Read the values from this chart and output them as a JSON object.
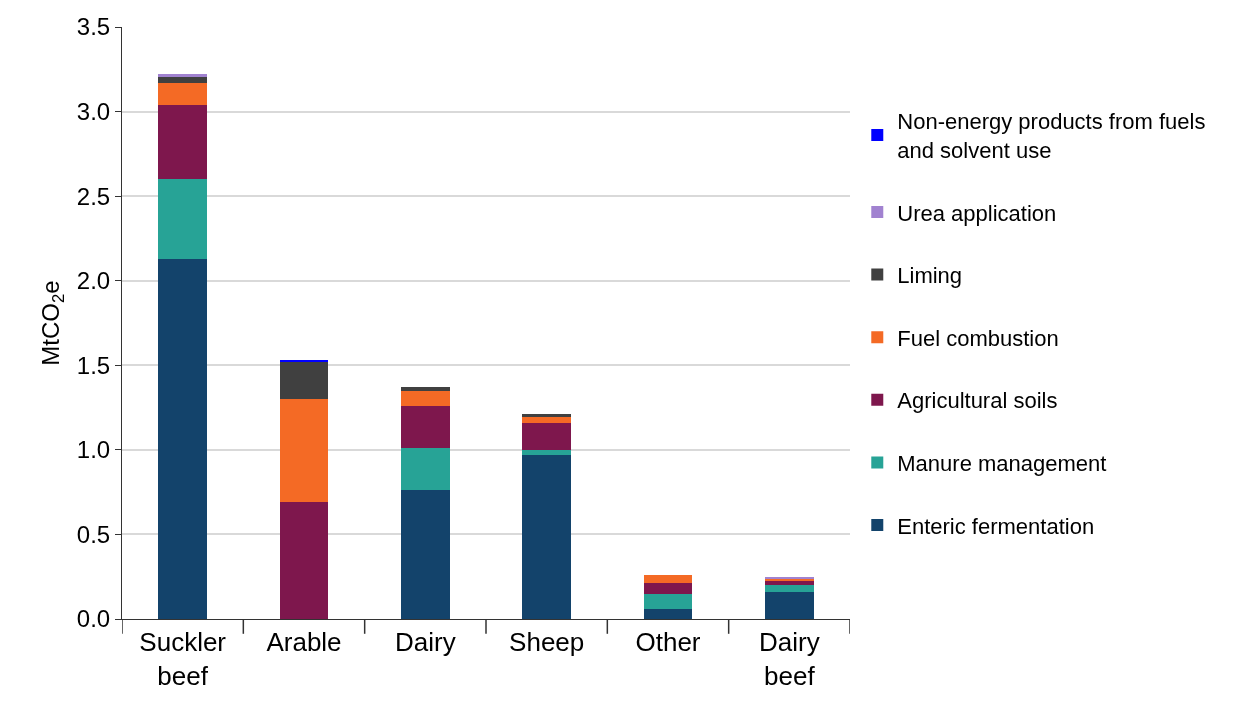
{
  "chart_data": {
    "type": "bar",
    "stacked": true,
    "ylabel": "MtCO$_{2}$e",
    "categories": [
      "Suckler beef",
      "Arable",
      "Dairy",
      "Sheep",
      "Other",
      "Dairy beef"
    ],
    "series": [
      {
        "name": "Enteric fermentation",
        "color": "#13436b",
        "values": [
          2.13,
          0,
          0.76,
          0.97,
          0.06,
          0.16
        ]
      },
      {
        "name": "Manure management",
        "color": "#27a396",
        "values": [
          0.47,
          0,
          0.25,
          0.03,
          0.09,
          0.04
        ]
      },
      {
        "name": "Agricultural soils",
        "color": "#7e174d",
        "values": [
          0.44,
          0.69,
          0.25,
          0.16,
          0.06,
          0.03
        ]
      },
      {
        "name": "Fuel combustion",
        "color": "#f46a25",
        "values": [
          0.13,
          0.61,
          0.09,
          0.04,
          0.05,
          0.01
        ]
      },
      {
        "name": "Liming",
        "color": "#404040",
        "values": [
          0.04,
          0.22,
          0.02,
          0.01,
          0,
          0
        ]
      },
      {
        "name": "Urea application",
        "color": "#a182d0",
        "values": [
          0.01,
          0,
          0,
          0,
          0,
          0.01
        ]
      },
      {
        "name": "Non-energy products from fuels and solvent use",
        "color": "#0000ff",
        "values": [
          0,
          0.01,
          0,
          0,
          0,
          0
        ]
      }
    ],
    "ylim": [
      0,
      3.5
    ],
    "yticks": [
      {
        "value": 0,
        "label": "0.0"
      },
      {
        "value": 0.5,
        "label": "0.5"
      },
      {
        "value": 1,
        "label": "1.0"
      },
      {
        "value": 1.5,
        "label": "1.5"
      },
      {
        "value": 2,
        "label": "2.0"
      },
      {
        "value": 2.5,
        "label": "2.5"
      },
      {
        "value": 3,
        "label": "3.0"
      },
      {
        "value": 3.5,
        "label": "3.5"
      }
    ],
    "grid": "y",
    "legend": "right"
  }
}
